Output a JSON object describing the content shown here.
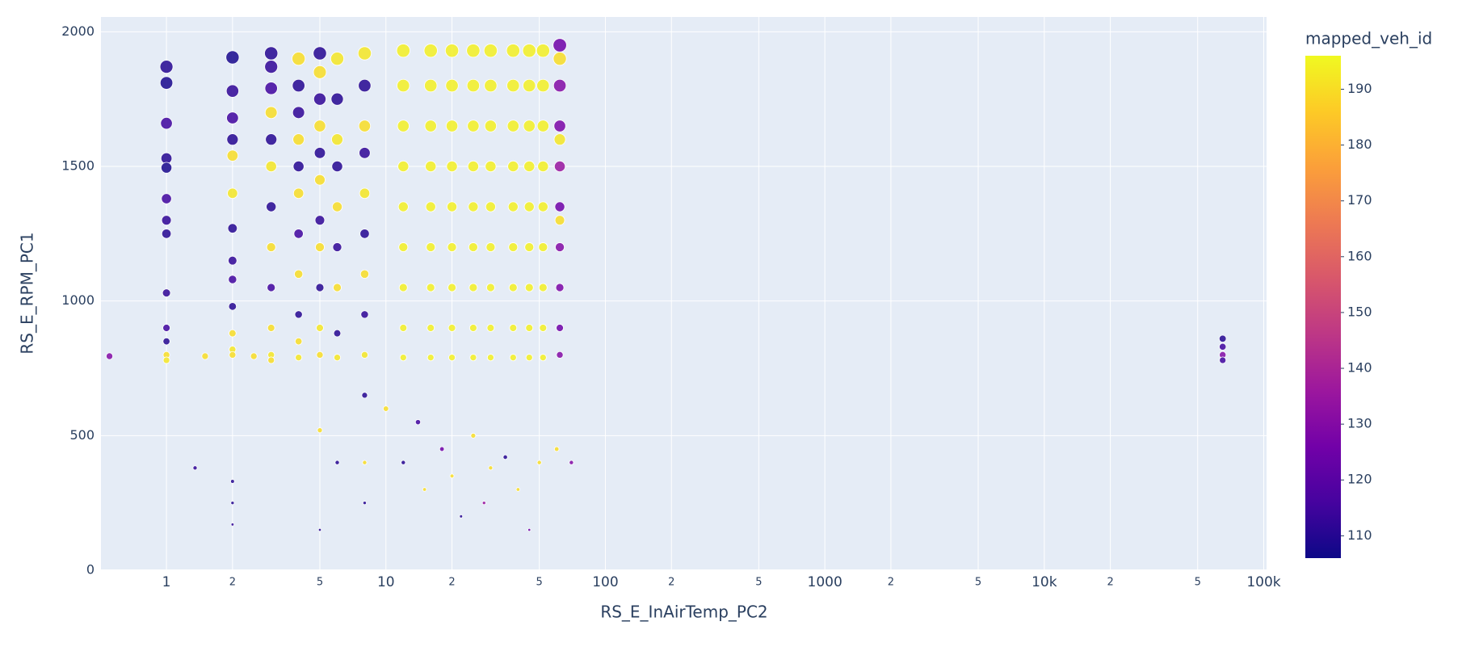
{
  "chart_data": {
    "type": "scatter",
    "x_label": "RS_E_InAirTemp_PC2",
    "y_label": "RS_E_RPM_PC1",
    "colorbar_title": "mapped_veh_id",
    "xscale": "log",
    "grid": true,
    "plot_bgcolor": "#e5ecf6",
    "xlim": [
      0.503,
      103000
    ],
    "ylim": [
      0,
      2055
    ],
    "xticks": [
      1,
      2,
      5,
      10,
      {
        "value": 20,
        "label": "2"
      },
      {
        "value": 50,
        "label": "5"
      },
      100,
      {
        "value": 200,
        "label": "2"
      },
      {
        "value": 500,
        "label": "5"
      },
      1000,
      {
        "value": 2000,
        "label": "2"
      },
      {
        "value": 5000,
        "label": "5"
      },
      {
        "value": 10000,
        "label": "10k"
      },
      {
        "value": 20000,
        "label": "2"
      },
      {
        "value": 50000,
        "label": "5"
      },
      {
        "value": 100000,
        "label": "100k"
      }
    ],
    "yticks": [
      0,
      500,
      1000,
      1500,
      2000
    ],
    "colorscale": [
      "#0d0887",
      "#46039f",
      "#7201a8",
      "#9c179e",
      "#bd3786",
      "#d8576b",
      "#ed7953",
      "#fb9f3a",
      "#fdca26",
      "#f0f921"
    ],
    "colorbar_lim": [
      106,
      196
    ],
    "colorbar_ticks": [
      110,
      120,
      130,
      140,
      150,
      160,
      170,
      180,
      190
    ],
    "series": [
      {
        "x": [
          1,
          1,
          1,
          1,
          1,
          1,
          1,
          1,
          1,
          1,
          1,
          1,
          1,
          2,
          2,
          2,
          2,
          2,
          2,
          2,
          2,
          2,
          2,
          2,
          2,
          2,
          2,
          2,
          2,
          3,
          3,
          3,
          3,
          3,
          3,
          3,
          3,
          3,
          3,
          3,
          3,
          4,
          4,
          4,
          4,
          4,
          4,
          4,
          4,
          4,
          4,
          4,
          5,
          5,
          5,
          5,
          5,
          5,
          5,
          5,
          5,
          5,
          5,
          5,
          5,
          6,
          6,
          6,
          6,
          6,
          6,
          6,
          6,
          6,
          6,
          8,
          8,
          8,
          8,
          8,
          8,
          8,
          8,
          8,
          8,
          8,
          8,
          12,
          12,
          12,
          12,
          12,
          12,
          12,
          12,
          12,
          16,
          16,
          16,
          16,
          16,
          16,
          16,
          16,
          16,
          20,
          20,
          20,
          20,
          20,
          20,
          20,
          20,
          20,
          25,
          25,
          25,
          25,
          25,
          25,
          25,
          25,
          25,
          30,
          30,
          30,
          30,
          30,
          30,
          30,
          30,
          30,
          38,
          38,
          38,
          38,
          38,
          38,
          38,
          38,
          38,
          45,
          45,
          45,
          45,
          45,
          45,
          45,
          45,
          45,
          52,
          52,
          52,
          52,
          52,
          52,
          52,
          52,
          52,
          62,
          62,
          62,
          62,
          62,
          62,
          62,
          62,
          62,
          62,
          62,
          62,
          12,
          15,
          18,
          20,
          22,
          25,
          28,
          30,
          35,
          40,
          45,
          50,
          60,
          70,
          10,
          14,
          1.35,
          0.55,
          1.5,
          2.5,
          65000,
          65000,
          65000,
          65000
        ],
        "y": [
          1870,
          1810,
          1660,
          1530,
          1495,
          1380,
          1300,
          1250,
          1030,
          900,
          850,
          800,
          780,
          1905,
          1780,
          1680,
          1600,
          1540,
          1400,
          1270,
          1150,
          1080,
          980,
          880,
          820,
          800,
          330,
          250,
          170,
          1920,
          1870,
          1790,
          1700,
          1600,
          1500,
          1350,
          1200,
          1050,
          900,
          800,
          780,
          1900,
          1800,
          1700,
          1600,
          1500,
          1400,
          1250,
          1100,
          950,
          850,
          790,
          1920,
          1850,
          1750,
          1650,
          1550,
          1450,
          1300,
          1200,
          1050,
          900,
          800,
          520,
          150,
          1900,
          1750,
          1600,
          1500,
          1350,
          1200,
          1050,
          880,
          790,
          400,
          1920,
          1800,
          1650,
          1550,
          1400,
          1250,
          1100,
          950,
          800,
          650,
          400,
          250,
          1930,
          1800,
          1650,
          1500,
          1350,
          1200,
          1050,
          900,
          790,
          1930,
          1800,
          1650,
          1500,
          1350,
          1200,
          1050,
          900,
          790,
          1930,
          1800,
          1650,
          1500,
          1350,
          1200,
          1050,
          900,
          790,
          1930,
          1800,
          1650,
          1500,
          1350,
          1200,
          1050,
          900,
          790,
          1930,
          1800,
          1650,
          1500,
          1350,
          1200,
          1050,
          900,
          790,
          1930,
          1800,
          1650,
          1500,
          1350,
          1200,
          1050,
          900,
          790,
          1930,
          1800,
          1650,
          1500,
          1350,
          1200,
          1050,
          900,
          790,
          1930,
          1800,
          1650,
          1500,
          1350,
          1200,
          1050,
          900,
          790,
          1950,
          1800,
          1650,
          1500,
          1350,
          1200,
          1050,
          900,
          800,
          1900,
          1600,
          1300,
          400,
          300,
          450,
          350,
          200,
          500,
          250,
          380,
          420,
          300,
          150,
          400,
          450,
          400,
          600,
          550,
          380,
          795,
          795,
          795,
          860,
          830,
          800,
          780
        ],
        "color_values": [
          110,
          108,
          115,
          110,
          108,
          115,
          112,
          110,
          112,
          115,
          110,
          190,
          192,
          108,
          112,
          115,
          110,
          190,
          192,
          110,
          112,
          115,
          110,
          190,
          192,
          190,
          110,
          110,
          112,
          110,
          112,
          115,
          190,
          110,
          192,
          110,
          190,
          115,
          190,
          192,
          190,
          190,
          110,
          112,
          190,
          110,
          190,
          115,
          190,
          110,
          190,
          192,
          110,
          190,
          112,
          190,
          110,
          190,
          112,
          190,
          110,
          192,
          190,
          190,
          110,
          192,
          110,
          192,
          110,
          190,
          112,
          190,
          110,
          192,
          110,
          192,
          110,
          190,
          112,
          192,
          110,
          190,
          112,
          192,
          110,
          190,
          110,
          194,
          194,
          194,
          194,
          194,
          194,
          194,
          194,
          194,
          194,
          194,
          194,
          194,
          194,
          194,
          194,
          194,
          194,
          194,
          194,
          194,
          194,
          194,
          194,
          194,
          194,
          194,
          194,
          194,
          194,
          194,
          194,
          194,
          194,
          194,
          194,
          194,
          194,
          194,
          194,
          194,
          194,
          194,
          194,
          194,
          194,
          194,
          194,
          194,
          194,
          194,
          194,
          194,
          194,
          194,
          194,
          194,
          194,
          194,
          194,
          194,
          194,
          194,
          194,
          194,
          194,
          194,
          194,
          194,
          194,
          194,
          194,
          125,
          130,
          128,
          135,
          125,
          130,
          128,
          125,
          130,
          190,
          192,
          190,
          110,
          190,
          125,
          190,
          110,
          190,
          135,
          190,
          110,
          190,
          125,
          190,
          190,
          130,
          190,
          115,
          112,
          130,
          190,
          190,
          110,
          115,
          130,
          115
        ]
      }
    ]
  }
}
